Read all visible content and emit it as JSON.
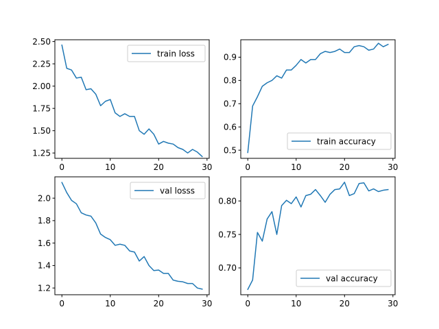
{
  "chart_data": [
    {
      "type": "line",
      "x": [
        0,
        1,
        2,
        3,
        4,
        5,
        6,
        7,
        8,
        9,
        10,
        11,
        12,
        13,
        14,
        15,
        16,
        17,
        18,
        19,
        20,
        21,
        22,
        23,
        24,
        25,
        26,
        27,
        28,
        29
      ],
      "series": [
        {
          "name": "train loss",
          "values": [
            2.46,
            2.2,
            2.18,
            2.09,
            2.1,
            1.96,
            1.97,
            1.91,
            1.78,
            1.83,
            1.85,
            1.7,
            1.66,
            1.69,
            1.66,
            1.66,
            1.5,
            1.46,
            1.52,
            1.46,
            1.35,
            1.38,
            1.36,
            1.35,
            1.31,
            1.29,
            1.25,
            1.29,
            1.26,
            1.21
          ]
        }
      ],
      "xlim": [
        -1.45,
        30.45
      ],
      "ylim": [
        1.19,
        2.52
      ],
      "xticks": [
        0,
        10,
        20,
        30
      ],
      "yticks": [
        1.25,
        1.5,
        1.75,
        2.0,
        2.25,
        2.5
      ],
      "ytick_labels": [
        "1.25",
        "1.50",
        "1.75",
        "2.00",
        "2.25",
        "2.50"
      ],
      "legend_loc": "upper right",
      "grid": false,
      "color": "#1f77b4"
    },
    {
      "type": "line",
      "x": [
        0,
        1,
        2,
        3,
        4,
        5,
        6,
        7,
        8,
        9,
        10,
        11,
        12,
        13,
        14,
        15,
        16,
        17,
        18,
        19,
        20,
        21,
        22,
        23,
        24,
        25,
        26,
        27,
        28,
        29
      ],
      "series": [
        {
          "name": "train accuracy",
          "values": [
            0.49,
            0.69,
            0.73,
            0.775,
            0.79,
            0.8,
            0.82,
            0.81,
            0.845,
            0.845,
            0.865,
            0.89,
            0.875,
            0.89,
            0.89,
            0.915,
            0.925,
            0.92,
            0.925,
            0.935,
            0.92,
            0.92,
            0.945,
            0.95,
            0.945,
            0.93,
            0.935,
            0.96,
            0.945,
            0.955
          ]
        }
      ],
      "xlim": [
        -1.45,
        30.45
      ],
      "ylim": [
        0.465,
        0.975
      ],
      "xticks": [
        0,
        10,
        20,
        30
      ],
      "yticks": [
        0.5,
        0.6,
        0.7,
        0.8,
        0.9
      ],
      "ytick_labels": [
        "0.5",
        "0.6",
        "0.7",
        "0.8",
        "0.9"
      ],
      "legend_loc": "lower right",
      "grid": false,
      "color": "#1f77b4"
    },
    {
      "type": "line",
      "x": [
        0,
        1,
        2,
        3,
        4,
        5,
        6,
        7,
        8,
        9,
        10,
        11,
        12,
        13,
        14,
        15,
        16,
        17,
        18,
        19,
        20,
        21,
        22,
        23,
        24,
        25,
        26,
        27,
        28,
        29
      ],
      "series": [
        {
          "name": "val losss",
          "values": [
            2.14,
            2.05,
            1.98,
            1.95,
            1.87,
            1.85,
            1.84,
            1.78,
            1.68,
            1.65,
            1.63,
            1.58,
            1.59,
            1.58,
            1.53,
            1.52,
            1.44,
            1.48,
            1.4,
            1.355,
            1.36,
            1.33,
            1.33,
            1.27,
            1.26,
            1.255,
            1.24,
            1.24,
            1.2,
            1.19
          ]
        }
      ],
      "xlim": [
        -1.45,
        30.45
      ],
      "ylim": [
        1.14,
        2.19
      ],
      "xticks": [
        0,
        10,
        20,
        30
      ],
      "yticks": [
        1.2,
        1.4,
        1.6,
        1.8,
        2.0
      ],
      "ytick_labels": [
        "1.2",
        "1.4",
        "1.6",
        "1.8",
        "2.0"
      ],
      "legend_loc": "upper right",
      "grid": false,
      "color": "#1f77b4"
    },
    {
      "type": "line",
      "x": [
        0,
        1,
        2,
        3,
        4,
        5,
        6,
        7,
        8,
        9,
        10,
        11,
        12,
        13,
        14,
        15,
        16,
        17,
        18,
        19,
        20,
        21,
        22,
        23,
        24,
        25,
        26,
        27,
        28,
        29
      ],
      "series": [
        {
          "name": "val accuracy",
          "values": [
            0.668,
            0.682,
            0.753,
            0.74,
            0.773,
            0.784,
            0.75,
            0.793,
            0.801,
            0.796,
            0.806,
            0.791,
            0.808,
            0.81,
            0.817,
            0.808,
            0.798,
            0.81,
            0.817,
            0.818,
            0.828,
            0.808,
            0.811,
            0.826,
            0.827,
            0.815,
            0.818,
            0.814,
            0.816,
            0.817
          ]
        }
      ],
      "xlim": [
        -1.45,
        30.45
      ],
      "ylim": [
        0.66,
        0.836
      ],
      "xticks": [
        0,
        10,
        20,
        30
      ],
      "yticks": [
        0.7,
        0.75,
        0.8
      ],
      "ytick_labels": [
        "0.70",
        "0.75",
        "0.80"
      ],
      "legend_loc": "lower right",
      "grid": false,
      "color": "#1f77b4"
    }
  ]
}
